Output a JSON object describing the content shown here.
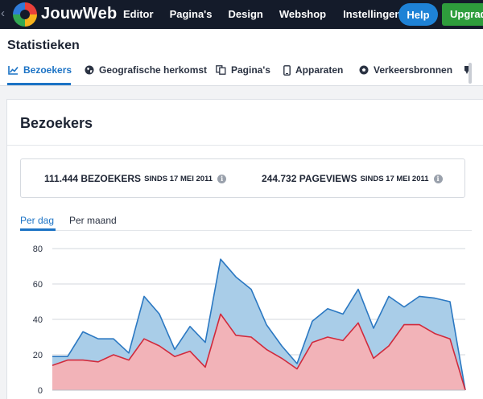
{
  "topbar": {
    "brand": "JouwWeb",
    "nav": [
      "Editor",
      "Pagina's",
      "Design",
      "Webshop",
      "Instellingen"
    ],
    "help_label": "Help",
    "upgrade_label": "Upgrad",
    "colors": {
      "bar": "#141b2a",
      "help": "#1e82d6",
      "upgrade": "#2e9d3c"
    }
  },
  "stats": {
    "title": "Statistieken",
    "tabs": [
      {
        "label": "Bezoekers",
        "icon": "line-chart-icon"
      },
      {
        "label": "Geografische herkomst",
        "icon": "globe-icon"
      },
      {
        "label": "Pagina's",
        "icon": "pages-icon"
      },
      {
        "label": "Apparaten",
        "icon": "phone-icon"
      },
      {
        "label": "Verkeersbronnen",
        "icon": "soccer-ball-icon"
      }
    ],
    "active_tab": "Bezoekers",
    "accent": "#1c73c5"
  },
  "card": {
    "title": "Bezoekers",
    "summary": [
      {
        "value": "111.444 BEZOEKERS",
        "since": "SINDS 17 MEI 2011"
      },
      {
        "value": "244.732 PAGEVIEWS",
        "since": "SINDS 17 MEI 2011"
      }
    ],
    "subtabs": [
      "Per dag",
      "Per maand"
    ],
    "active_subtab": "Per dag"
  },
  "chart_data": {
    "type": "area",
    "ylim": [
      0,
      80
    ],
    "yticks": [
      "0",
      "20",
      "40",
      "60",
      "80"
    ],
    "grid": true,
    "series": [
      {
        "color": "#2b78c2",
        "fill": "#a9cde8",
        "values": [
          19,
          19,
          33,
          29,
          29,
          21,
          53,
          43,
          23,
          36,
          27,
          74,
          64,
          57,
          37,
          25,
          15,
          39,
          46,
          43,
          57,
          35,
          53,
          47,
          53,
          52,
          50,
          0
        ]
      },
      {
        "color": "#d12a3c",
        "fill": "#f2b3b8",
        "values": [
          14,
          17,
          17,
          16,
          20,
          17,
          29,
          25,
          19,
          22,
          13,
          43,
          31,
          30,
          23,
          18,
          12,
          27,
          30,
          28,
          38,
          18,
          25,
          37,
          37,
          32,
          29,
          0
        ]
      }
    ]
  }
}
